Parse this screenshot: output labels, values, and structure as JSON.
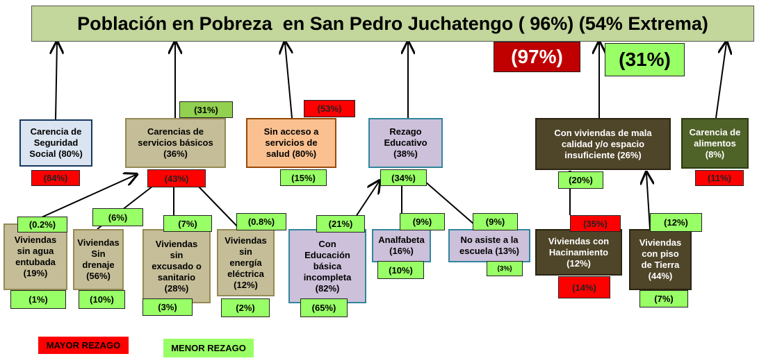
{
  "title": "Población en Pobreza  en San Pedro Juchatengo ( 96%) (54% Extrema)",
  "top_badges": [
    {
      "text": "(97%)",
      "color": "#c00000"
    },
    {
      "text": "(31%)",
      "color": "#99ff66"
    }
  ],
  "nodes": [
    {
      "lines": [
        "Carencia de",
        "Seguridad",
        "Social (80%)"
      ],
      "badges": [
        {
          "text": "(84%)",
          "color": "#ff0000"
        }
      ]
    },
    {
      "lines": [
        "Carencias  de",
        "servicios básicos",
        "(36%)"
      ],
      "badges": [
        {
          "text": "(31%)",
          "color": "#92d050"
        },
        {
          "text": "(43%)",
          "color": "#ff0000"
        }
      ]
    },
    {
      "lines": [
        "Sin acceso a",
        "servicios de",
        "salud (80%)"
      ],
      "badges": [
        {
          "text": "(53%)",
          "color": "#ff0000"
        },
        {
          "text": "(15%)",
          "color": "#99ff66"
        }
      ]
    },
    {
      "lines": [
        "Rezago",
        "Educativo",
        "(38%)"
      ],
      "badges": [
        {
          "text": "(34%)",
          "color": "#99ff66"
        }
      ]
    },
    {
      "lines": [
        "Con viviendas de mala",
        "calidad  y/o espacio",
        "insuficiente (26%)"
      ],
      "badges": [
        {
          "text": "(20%)",
          "color": "#99ff66"
        }
      ]
    },
    {
      "lines": [
        "Carencia de",
        "alimentos",
        "(8%)"
      ],
      "badges": [
        {
          "text": "(11%)",
          "color": "#ff0000"
        }
      ]
    },
    {
      "lines": [
        "Viviendas",
        "sin agua",
        "entubada",
        "(19%)"
      ],
      "badges": [
        {
          "text": "(0.2%)",
          "color": "#99ff66"
        },
        {
          "text": "(1%)",
          "color": "#99ff66"
        }
      ]
    },
    {
      "lines": [
        "Viviendas",
        "Sin",
        "drenaje",
        "(56%)"
      ],
      "badges": [
        {
          "text": "(6%)",
          "color": "#99ff66"
        },
        {
          "text": "(10%)",
          "color": "#99ff66"
        }
      ]
    },
    {
      "lines": [
        "Viviendas",
        "sin",
        "excusado o",
        "sanitario",
        "(28%)"
      ],
      "badges": [
        {
          "text": "(7%)",
          "color": "#99ff66"
        },
        {
          "text": "(3%)",
          "color": "#99ff66"
        }
      ]
    },
    {
      "lines": [
        "Viviendas",
        "sin",
        "energía",
        "eléctrica",
        "(12%)"
      ],
      "badges": [
        {
          "text": "(0.8%)",
          "color": "#99ff66"
        },
        {
          "text": "(2%)",
          "color": "#99ff66"
        }
      ]
    },
    {
      "lines": [
        "Con",
        "Educación",
        "básica",
        "incompleta",
        "(82%)"
      ],
      "badges": [
        {
          "text": "(21%)",
          "color": "#99ff66"
        },
        {
          "text": "(65%)",
          "color": "#99ff66"
        }
      ]
    },
    {
      "lines": [
        "Analfabeta",
        "(16%)"
      ],
      "badges": [
        {
          "text": "(9%)",
          "color": "#99ff66"
        },
        {
          "text": "(10%)",
          "color": "#99ff66"
        }
      ]
    },
    {
      "lines": [
        "No asiste a la",
        "escuela (13%)"
      ],
      "badges": [
        {
          "text": "(9%)",
          "color": "#99ff66"
        },
        {
          "text": "(3%)",
          "color": "#99ff66"
        }
      ]
    },
    {
      "lines": [
        "Viviendas con",
        "Hacinamiento",
        "(12%)"
      ],
      "badges": [
        {
          "text": "(35%)",
          "color": "#ff0000"
        },
        {
          "text": "(14%)",
          "color": "#ff0000"
        }
      ]
    },
    {
      "lines": [
        "Viviendas",
        "con piso",
        "de Tierra",
        "(44%)"
      ],
      "badges": [
        {
          "text": "(12%)",
          "color": "#99ff66"
        },
        {
          "text": "(7%)",
          "color": "#99ff66"
        }
      ]
    }
  ],
  "legend": [
    {
      "text": "MAYOR REZAGO",
      "color": "#ff0000"
    },
    {
      "text": "MENOR REZAGO",
      "color": "#99ff66"
    }
  ]
}
